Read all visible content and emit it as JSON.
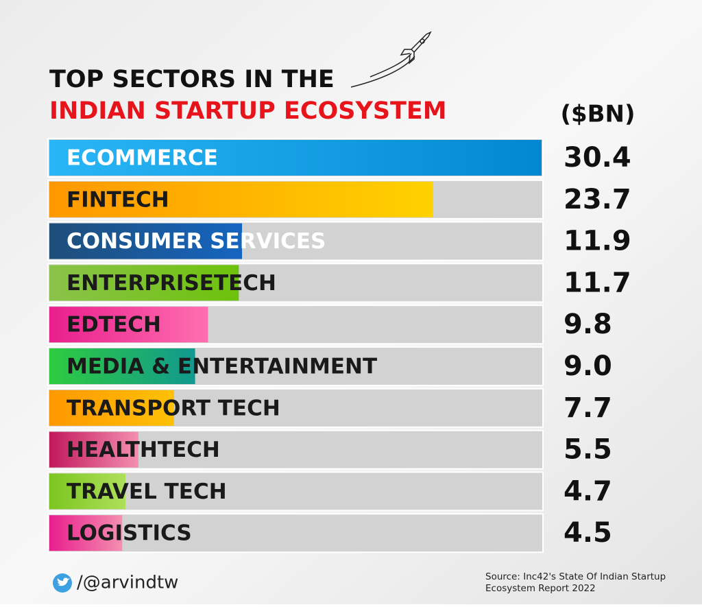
{
  "chart_data": {
    "type": "bar",
    "title": "TOP SECTORS IN THE",
    "subtitle": "INDIAN STARTUP ECOSYSTEM",
    "value_header": "($BN)",
    "categories": [
      "ECOMMERCE",
      "FINTECH",
      "CONSUMER SERVICES",
      "ENTERPRISETECH",
      "EDTECH",
      "MEDIA & ENTERTAINMENT",
      "TRANSPORT TECH",
      "HEALTHTECH",
      "TRAVEL TECH",
      "LOGISTICS"
    ],
    "values": [
      30.4,
      23.7,
      11.9,
      11.7,
      9.8,
      9.0,
      7.7,
      5.5,
      4.7,
      4.5
    ],
    "value_labels": [
      "30.4",
      "23.7",
      "11.9",
      "11.7",
      "9.8",
      "9.0",
      "7.7",
      "5.5",
      "4.7",
      "4.5"
    ],
    "colors": [
      [
        "#29b6f6",
        "#0288d1"
      ],
      [
        "#ff9800",
        "#ffd200"
      ],
      [
        "#1f4e79",
        "#1565c0"
      ],
      [
        "#8bc34a",
        "#6dc20c"
      ],
      [
        "#e91e8c",
        "#ff6fb0"
      ],
      [
        "#2ecc40",
        "#11998e"
      ],
      [
        "#ff9800",
        "#ffc107"
      ],
      [
        "#c2185b",
        "#f48fb1"
      ],
      [
        "#7cc520",
        "#aee05a"
      ],
      [
        "#e91e8c",
        "#f48fb1"
      ]
    ],
    "label_colors": [
      "#ffffff",
      "#1a1a1a",
      "#ffffff",
      "#1a1a1a",
      "#1a1a1a",
      "#1a1a1a",
      "#1a1a1a",
      "#1a1a1a",
      "#1a1a1a",
      "#1a1a1a"
    ],
    "title_color": "#111111",
    "subtitle_color": "#e8141b",
    "handle": "/@arvindtw",
    "source": [
      "Source: Inc42's State Of Indian Startup",
      "Ecosystem Report 2022"
    ]
  }
}
